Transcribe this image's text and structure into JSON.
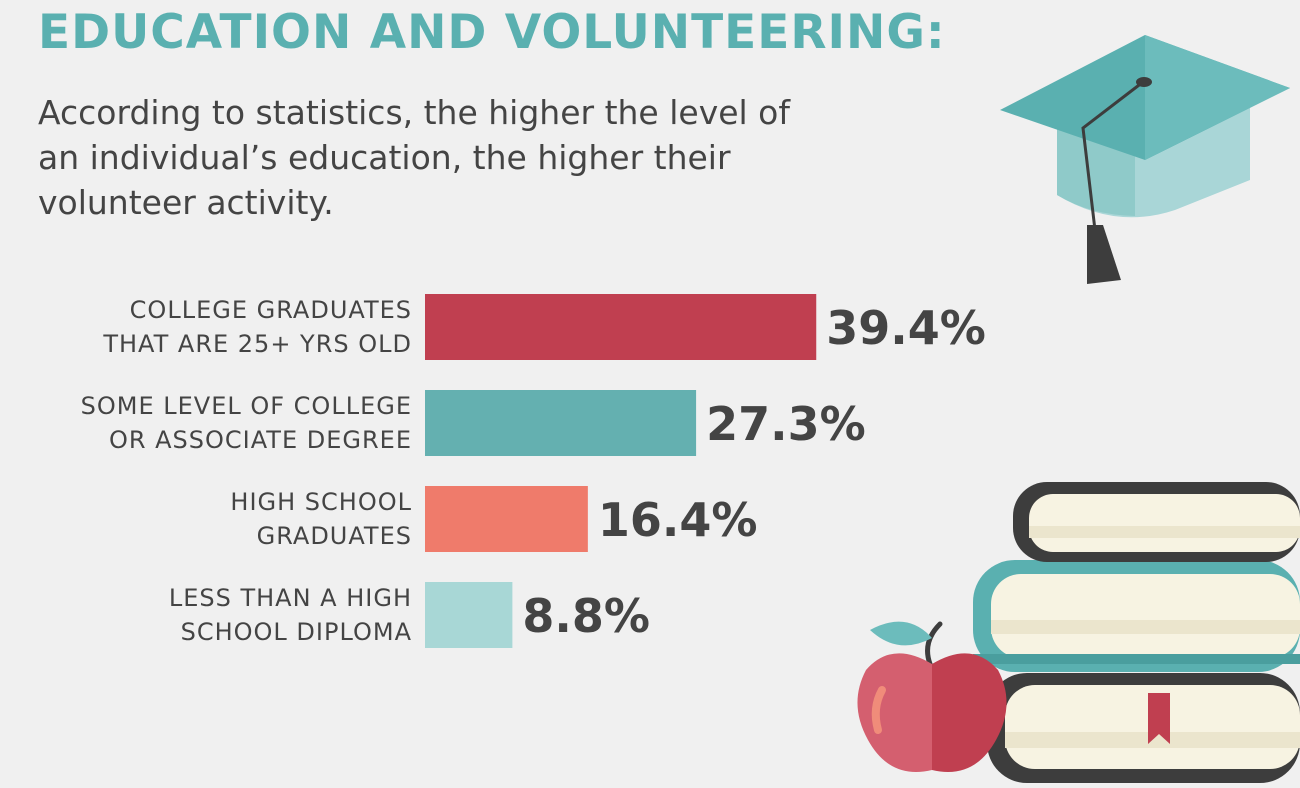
{
  "header": {
    "title": "EDUCATION AND VOLUNTEERING:",
    "subtitle": "According to statistics, the higher the level of\nan individual’s education, the higher their\nvolunteer activity."
  },
  "colors": {
    "background": "#f0f0f0",
    "title": "#5ab0b0",
    "text": "#444444"
  },
  "chart_data": {
    "type": "bar",
    "orientation": "horizontal",
    "categories": [
      [
        "COLLEGE GRADUATES",
        "THAT ARE 25+ YRS OLD"
      ],
      [
        "SOME LEVEL OF COLLEGE",
        "OR ASSOCIATE DEGREE"
      ],
      [
        "HIGH SCHOOL",
        "GRADUATES"
      ],
      [
        "LESS THAN A HIGH",
        "SCHOOL DIPLOMA"
      ]
    ],
    "values": [
      39.4,
      27.3,
      16.4,
      8.8
    ],
    "value_labels": [
      "39.4%",
      "27.3%",
      "16.4%",
      "8.8%"
    ],
    "colors": [
      "#c03f50",
      "#64b0b0",
      "#ef7b6b",
      "#a8d7d6"
    ],
    "grid": false,
    "legend": "none"
  },
  "illustrations": {
    "graduation_cap": "graduation-cap-icon",
    "books": "stack-of-books-icon",
    "apple": "apple-icon"
  }
}
